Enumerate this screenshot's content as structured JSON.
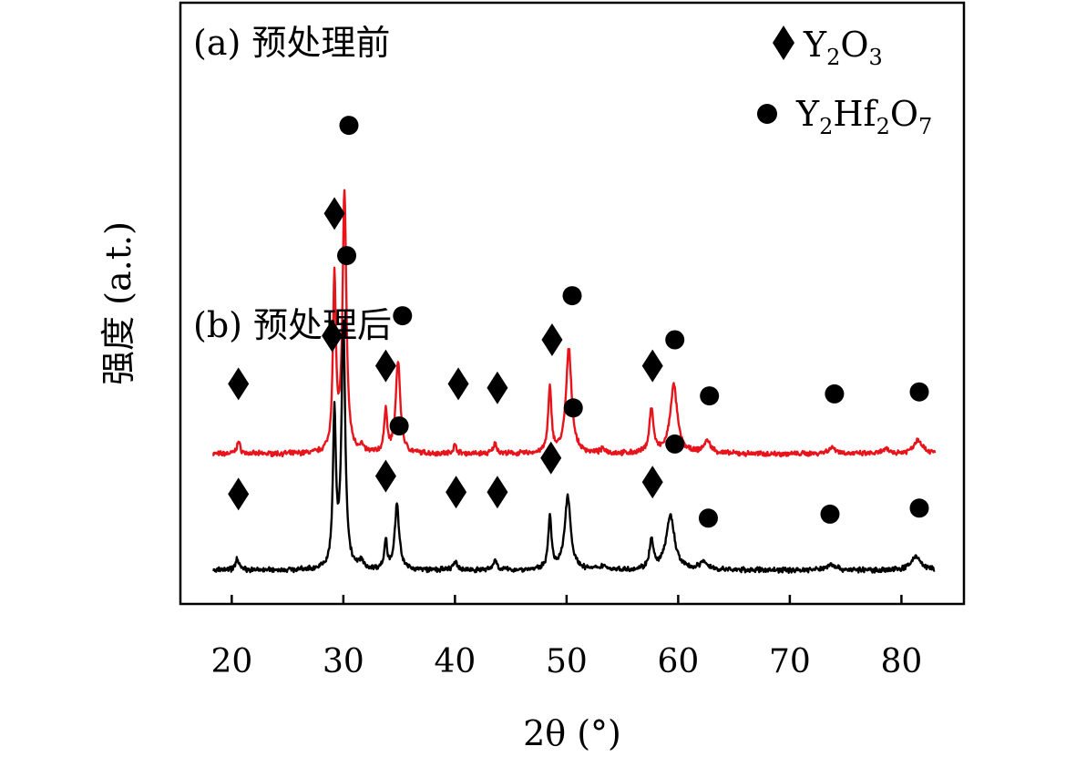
{
  "chart_data": {
    "type": "line",
    "xlabel": "2θ (°)",
    "ylabel": "强度 (a.t.)",
    "xlim": [
      15.4,
      85.6
    ],
    "xticks": [
      20,
      30,
      40,
      50,
      60,
      70,
      80
    ],
    "yticks": [],
    "grid": false,
    "legend_placement": "top-right",
    "legend": [
      {
        "marker": "diamond",
        "label": "Y2O3"
      },
      {
        "marker": "circle",
        "label": "Y2Hf2O7"
      }
    ],
    "colors": {
      "pre": "#e8141c",
      "post": "#000000",
      "markers": "#000000"
    },
    "series": [
      {
        "name": "(a) 预处理前",
        "color": "#e8141c",
        "baseline": 0.58,
        "noise": 0.01,
        "peaks": [
          {
            "x": 20.6,
            "h": 0.06,
            "w": 0.18
          },
          {
            "x": 29.2,
            "h": 0.86,
            "w": 0.16
          },
          {
            "x": 30.1,
            "h": 1.3,
            "w": 0.2
          },
          {
            "x": 31.6,
            "h": 0.03,
            "w": 0.2
          },
          {
            "x": 33.8,
            "h": 0.22,
            "w": 0.15
          },
          {
            "x": 34.9,
            "h": 0.46,
            "w": 0.24
          },
          {
            "x": 40.0,
            "h": 0.04,
            "w": 0.2
          },
          {
            "x": 43.6,
            "h": 0.05,
            "w": 0.2
          },
          {
            "x": 48.5,
            "h": 0.32,
            "w": 0.18
          },
          {
            "x": 50.2,
            "h": 0.52,
            "w": 0.3
          },
          {
            "x": 53.3,
            "h": 0.02,
            "w": 0.3
          },
          {
            "x": 57.6,
            "h": 0.22,
            "w": 0.22
          },
          {
            "x": 59.6,
            "h": 0.34,
            "w": 0.38
          },
          {
            "x": 62.6,
            "h": 0.06,
            "w": 0.4
          },
          {
            "x": 73.8,
            "h": 0.03,
            "w": 0.5
          },
          {
            "x": 78.6,
            "h": 0.02,
            "w": 0.4
          },
          {
            "x": 81.5,
            "h": 0.07,
            "w": 0.5
          }
        ],
        "markers": [
          {
            "x": 20.6,
            "type": "diamond",
            "y": 0.93
          },
          {
            "x": 29.2,
            "type": "diamond",
            "y": 1.78
          },
          {
            "x": 30.5,
            "type": "circle",
            "y": 2.22
          },
          {
            "x": 33.8,
            "type": "diamond",
            "y": 1.02
          },
          {
            "x": 35.3,
            "type": "circle",
            "y": 1.27
          },
          {
            "x": 40.3,
            "type": "diamond",
            "y": 0.93
          },
          {
            "x": 43.8,
            "type": "diamond",
            "y": 0.91
          },
          {
            "x": 48.7,
            "type": "diamond",
            "y": 1.15
          },
          {
            "x": 50.5,
            "type": "circle",
            "y": 1.37
          },
          {
            "x": 57.7,
            "type": "diamond",
            "y": 1.02
          },
          {
            "x": 59.7,
            "type": "circle",
            "y": 1.15
          },
          {
            "x": 62.8,
            "type": "circle",
            "y": 0.87
          },
          {
            "x": 74.0,
            "type": "circle",
            "y": 0.88
          },
          {
            "x": 81.6,
            "type": "circle",
            "y": 0.89
          }
        ]
      },
      {
        "name": "(b) 预处理后",
        "color": "#000000",
        "baseline": 0.0,
        "noise": 0.01,
        "peaks": [
          {
            "x": 20.5,
            "h": 0.06,
            "w": 0.18
          },
          {
            "x": 29.2,
            "h": 0.76,
            "w": 0.16
          },
          {
            "x": 30.0,
            "h": 1.22,
            "w": 0.2
          },
          {
            "x": 31.6,
            "h": 0.04,
            "w": 0.2
          },
          {
            "x": 33.8,
            "h": 0.14,
            "w": 0.15
          },
          {
            "x": 34.8,
            "h": 0.32,
            "w": 0.24
          },
          {
            "x": 40.0,
            "h": 0.04,
            "w": 0.2
          },
          {
            "x": 43.6,
            "h": 0.05,
            "w": 0.2
          },
          {
            "x": 48.5,
            "h": 0.26,
            "w": 0.18
          },
          {
            "x": 50.1,
            "h": 0.37,
            "w": 0.32
          },
          {
            "x": 53.3,
            "h": 0.02,
            "w": 0.3
          },
          {
            "x": 57.6,
            "h": 0.14,
            "w": 0.22
          },
          {
            "x": 59.3,
            "h": 0.27,
            "w": 0.45
          },
          {
            "x": 62.3,
            "h": 0.04,
            "w": 0.4
          },
          {
            "x": 73.7,
            "h": 0.03,
            "w": 0.5
          },
          {
            "x": 81.3,
            "h": 0.07,
            "w": 0.5
          }
        ],
        "markers": [
          {
            "x": 20.6,
            "type": "diamond",
            "y": 0.38
          },
          {
            "x": 29.0,
            "type": "diamond",
            "y": 1.17
          },
          {
            "x": 30.3,
            "type": "circle",
            "y": 1.57
          },
          {
            "x": 33.8,
            "type": "diamond",
            "y": 0.47
          },
          {
            "x": 35.0,
            "type": "circle",
            "y": 0.72
          },
          {
            "x": 40.1,
            "type": "diamond",
            "y": 0.39
          },
          {
            "x": 43.8,
            "type": "diamond",
            "y": 0.39
          },
          {
            "x": 48.6,
            "type": "diamond",
            "y": 0.56
          },
          {
            "x": 50.6,
            "type": "circle",
            "y": 0.81
          },
          {
            "x": 57.7,
            "type": "diamond",
            "y": 0.44
          },
          {
            "x": 59.7,
            "type": "circle",
            "y": 0.63
          },
          {
            "x": 62.7,
            "type": "circle",
            "y": 0.26
          },
          {
            "x": 73.6,
            "type": "circle",
            "y": 0.28
          },
          {
            "x": 81.6,
            "type": "circle",
            "y": 0.31
          }
        ]
      }
    ]
  },
  "panel_labels": {
    "a": "(a) 预处理前",
    "b": "(b) 预处理后"
  }
}
